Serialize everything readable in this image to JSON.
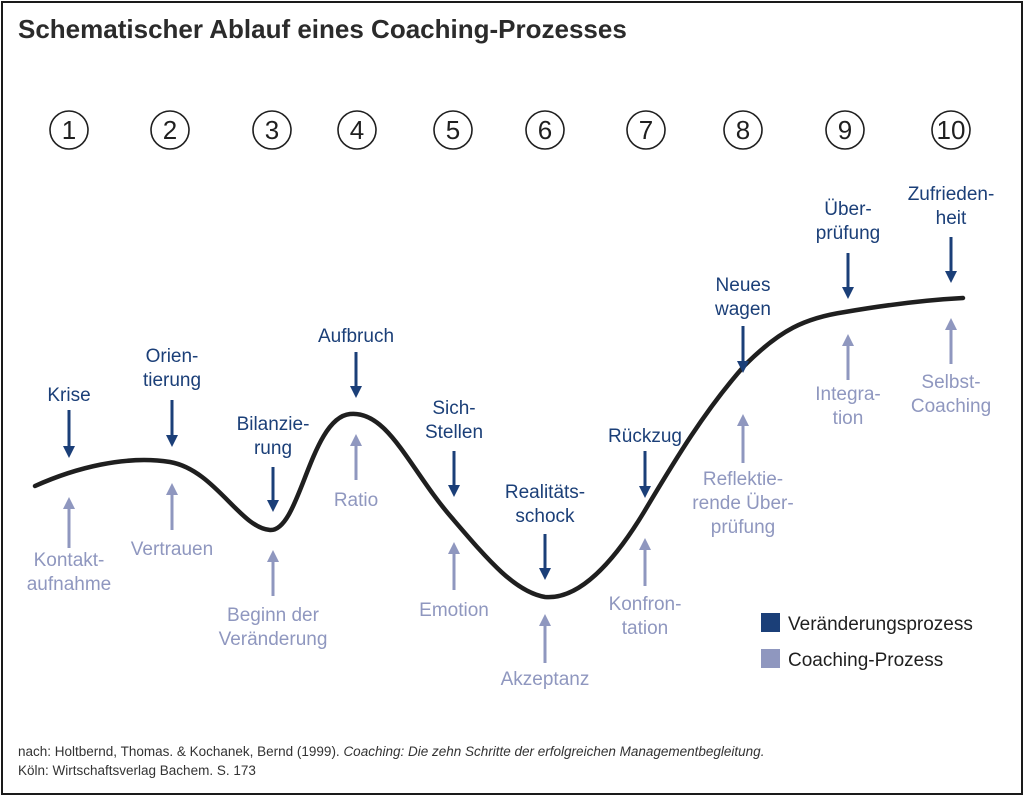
{
  "title": "Schematischer Ablauf eines Coaching-Prozesses",
  "colors": {
    "change_process": "#1b3f78",
    "coaching_process": "#8f97bf",
    "curve": "#1f1f1f"
  },
  "steps": [
    {
      "number": "1",
      "change": [
        "Krise"
      ],
      "coaching": [
        "Kontakt-",
        "aufnahme"
      ]
    },
    {
      "number": "2",
      "change": [
        "Orien-",
        "tierung"
      ],
      "coaching": [
        "Vertrauen"
      ]
    },
    {
      "number": "3",
      "change": [
        "Bilanzie-",
        "rung"
      ],
      "coaching": [
        "Beginn der",
        "Veränderung"
      ]
    },
    {
      "number": "4",
      "change": [
        "Aufbruch"
      ],
      "coaching": [
        "Ratio"
      ]
    },
    {
      "number": "5",
      "change": [
        "Sich-",
        "Stellen"
      ],
      "coaching": [
        "Emotion"
      ]
    },
    {
      "number": "6",
      "change": [
        "Realitäts-",
        "schock"
      ],
      "coaching": [
        "Akzeptanz"
      ]
    },
    {
      "number": "7",
      "change": [
        "Rückzug"
      ],
      "coaching": [
        "Konfron-",
        "tation"
      ]
    },
    {
      "number": "8",
      "change": [
        "Neues",
        "wagen"
      ],
      "coaching": [
        "Reflektie-",
        "rende Über-",
        "prüfung"
      ]
    },
    {
      "number": "9",
      "change": [
        "Über-",
        "prüfung"
      ],
      "coaching": [
        "Integra-",
        "tion"
      ]
    },
    {
      "number": "10",
      "change": [
        "Zufrieden-",
        "heit"
      ],
      "coaching": [
        "Selbst-",
        "Coaching"
      ]
    }
  ],
  "legend": {
    "change_label": "Veränderungsprozess",
    "coaching_label": "Coaching-Prozess"
  },
  "source": {
    "prefix": "nach: Holtbernd, Thomas. & Kochanek, Bernd (1999). ",
    "book_title": "Coaching: Die zehn Schritte der erfolgreichen Managementbegleitung.",
    "line2": "Köln: Wirtschaftsverlag Bachem. S. 173"
  }
}
